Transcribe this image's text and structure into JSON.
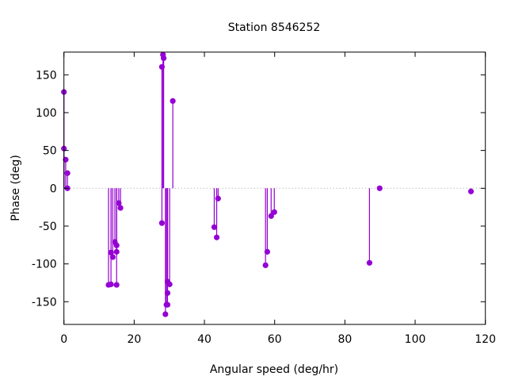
{
  "chart_data": {
    "type": "impulse-scatter",
    "title": "Station 8546252",
    "xlabel": "Angular speed (deg/hr)",
    "ylabel": "Phase (deg)",
    "xlim": [
      0,
      120
    ],
    "ylim": [
      -180,
      180
    ],
    "xticks": [
      0,
      20,
      40,
      60,
      80,
      100,
      120
    ],
    "yticks": [
      -150,
      -100,
      -50,
      0,
      50,
      100,
      150
    ],
    "grid": false,
    "zero_line": true,
    "color": "#9400d3",
    "points": [
      [
        0.0,
        127.3
      ],
      [
        0.0,
        52.5
      ],
      [
        0.5,
        37.8
      ],
      [
        1.0,
        20.0
      ],
      [
        1.0,
        0.0
      ],
      [
        12.7,
        -127.7
      ],
      [
        13.4,
        -127.0
      ],
      [
        13.4,
        -85.0
      ],
      [
        13.9,
        -91.0
      ],
      [
        14.5,
        -71.0
      ],
      [
        15.0,
        -75.5
      ],
      [
        15.0,
        -84.0
      ],
      [
        15.0,
        -127.7
      ],
      [
        15.6,
        -19.6
      ],
      [
        16.1,
        -26.0
      ],
      [
        27.9,
        160.5
      ],
      [
        27.9,
        -46.0
      ],
      [
        28.2,
        176.6
      ],
      [
        28.4,
        172.0
      ],
      [
        28.9,
        -166.5
      ],
      [
        29.2,
        -154.0
      ],
      [
        29.5,
        -154.0
      ],
      [
        29.5,
        -138.5
      ],
      [
        29.5,
        -123.5
      ],
      [
        30.1,
        -127.0
      ],
      [
        31.0,
        115.4
      ],
      [
        42.8,
        -51.4
      ],
      [
        43.5,
        -65.0
      ],
      [
        43.9,
        -13.6
      ],
      [
        57.4,
        -101.8
      ],
      [
        57.9,
        -84.0
      ],
      [
        59.0,
        -36.7
      ],
      [
        59.9,
        -31.5
      ],
      [
        87.0,
        -98.6
      ],
      [
        89.9,
        0.0
      ],
      [
        115.9,
        -4.2
      ]
    ]
  }
}
